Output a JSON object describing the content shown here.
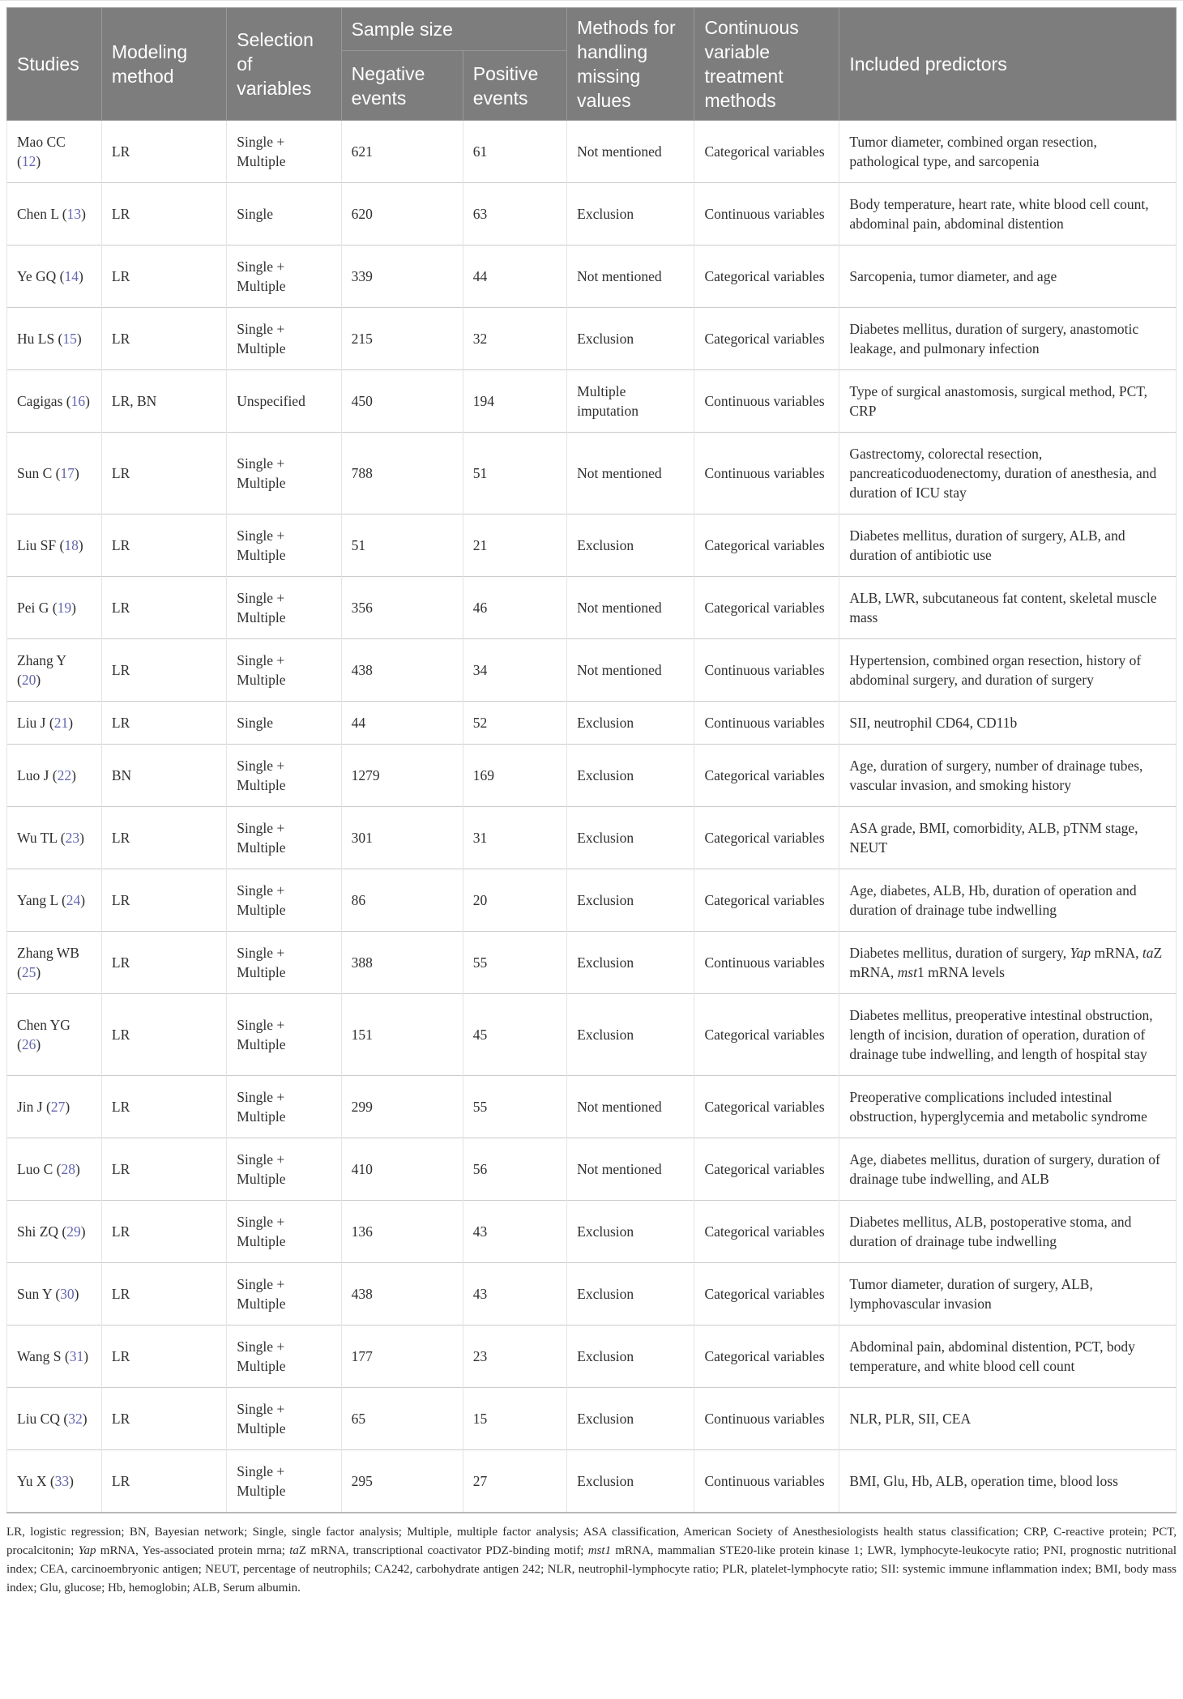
{
  "colors": {
    "header_bg": "#7d7d7d",
    "header_text": "#ffffff",
    "body_text": "#2f2f2f",
    "citation": "#6366b0",
    "row_border": "#cbcbcb",
    "col_border": "#e4e4e4"
  },
  "table": {
    "columns": {
      "studies": "Studies",
      "modeling": "Modeling method",
      "selection": "Selection of variables",
      "sample_size": "Sample size",
      "negative": "Negative events",
      "positive": "Positive events",
      "missing": "Methods for handling missing values",
      "treatment": "Continuous variable treatment methods",
      "predictors": "Included predictors"
    },
    "rows": [
      {
        "study": "Mao CC",
        "ref": "12",
        "modeling": "LR",
        "selection": "Single + Multiple",
        "negative": "621",
        "positive": "61",
        "missing": "Not mentioned",
        "treatment": "Categorical variables",
        "predictors": [
          {
            "text": "Tumor diameter, combined organ resection, pathological type, and sarcopenia"
          }
        ]
      },
      {
        "study": "Chen L",
        "ref": "13",
        "modeling": "LR",
        "selection": "Single",
        "negative": "620",
        "positive": "63",
        "missing": "Exclusion",
        "treatment": "Continuous variables",
        "predictors": [
          {
            "text": "Body temperature, heart rate, white blood cell count, abdominal pain, abdominal distention"
          }
        ]
      },
      {
        "study": "Ye GQ",
        "ref": "14",
        "modeling": "LR",
        "selection": "Single + Multiple",
        "negative": "339",
        "positive": "44",
        "missing": "Not mentioned",
        "treatment": "Categorical variables",
        "predictors": [
          {
            "text": "Sarcopenia, tumor diameter, and age"
          }
        ]
      },
      {
        "study": "Hu LS",
        "ref": "15",
        "modeling": "LR",
        "selection": "Single + Multiple",
        "negative": "215",
        "positive": "32",
        "missing": "Exclusion",
        "treatment": "Categorical variables",
        "predictors": [
          {
            "text": "Diabetes mellitus, duration of surgery, anastomotic leakage, and pulmonary infection"
          }
        ]
      },
      {
        "study": "Cagigas",
        "ref": "16",
        "modeling": "LR, BN",
        "selection": "Unspecified",
        "negative": "450",
        "positive": "194",
        "missing": "Multiple imputation",
        "treatment": "Continuous variables",
        "predictors": [
          {
            "text": "Type of surgical anastomosis, surgical method, PCT, CRP"
          }
        ]
      },
      {
        "study": "Sun C",
        "ref": "17",
        "modeling": "LR",
        "selection": "Single + Multiple",
        "negative": "788",
        "positive": "51",
        "missing": "Not mentioned",
        "treatment": "Continuous variables",
        "predictors": [
          {
            "text": "Gastrectomy, colorectal resection, pancreaticoduodenectomy, duration of anesthesia, and duration of ICU stay"
          }
        ]
      },
      {
        "study": "Liu SF",
        "ref": "18",
        "modeling": "LR",
        "selection": "Single + Multiple",
        "negative": "51",
        "positive": "21",
        "missing": "Exclusion",
        "treatment": "Categorical variables",
        "predictors": [
          {
            "text": "Diabetes mellitus, duration of surgery, ALB, and duration of antibiotic use"
          }
        ]
      },
      {
        "study": "Pei G",
        "ref": "19",
        "modeling": "LR",
        "selection": "Single + Multiple",
        "negative": "356",
        "positive": "46",
        "missing": "Not mentioned",
        "treatment": "Categorical variables",
        "predictors": [
          {
            "text": "ALB, LWR, subcutaneous fat content, skeletal muscle mass"
          }
        ]
      },
      {
        "study": "Zhang Y",
        "ref": "20",
        "modeling": "LR",
        "selection": "Single + Multiple",
        "negative": "438",
        "positive": "34",
        "missing": "Not mentioned",
        "treatment": "Continuous variables",
        "predictors": [
          {
            "text": "Hypertension, combined organ resection, history of abdominal surgery, and duration of surgery"
          }
        ]
      },
      {
        "study": "Liu J",
        "ref": "21",
        "modeling": "LR",
        "selection": "Single",
        "negative": "44",
        "positive": "52",
        "missing": "Exclusion",
        "treatment": "Continuous variables",
        "predictors": [
          {
            "text": "SII, neutrophil CD64, CD11b"
          }
        ]
      },
      {
        "study": "Luo J",
        "ref": "22",
        "modeling": "BN",
        "selection": "Single + Multiple",
        "negative": "1279",
        "positive": "169",
        "missing": "Exclusion",
        "treatment": "Categorical variables",
        "predictors": [
          {
            "text": "Age, duration of surgery, number of drainage tubes, vascular invasion, and smoking history"
          }
        ]
      },
      {
        "study": "Wu TL",
        "ref": "23",
        "modeling": "LR",
        "selection": "Single + Multiple",
        "negative": "301",
        "positive": "31",
        "missing": "Exclusion",
        "treatment": "Categorical variables",
        "predictors": [
          {
            "text": "ASA grade, BMI, comorbidity, ALB, pTNM stage, NEUT"
          }
        ]
      },
      {
        "study": "Yang L",
        "ref": "24",
        "modeling": "LR",
        "selection": "Single + Multiple",
        "negative": "86",
        "positive": "20",
        "missing": "Exclusion",
        "treatment": "Categorical variables",
        "predictors": [
          {
            "text": "Age, diabetes, ALB, Hb, duration of operation and duration of drainage tube indwelling"
          }
        ]
      },
      {
        "study": "Zhang WB",
        "ref": "25",
        "modeling": "LR",
        "selection": "Single + Multiple",
        "negative": "388",
        "positive": "55",
        "missing": "Exclusion",
        "treatment": "Continuous variables",
        "predictors": [
          {
            "text": "Diabetes mellitus, duration of surgery, "
          },
          {
            "text": "Yap",
            "italic": true
          },
          {
            "text": " mRNA, "
          },
          {
            "text": "ta",
            "italic": true
          },
          {
            "text": "Z mRNA, "
          },
          {
            "text": "mst",
            "italic": true
          },
          {
            "text": "1 mRNA levels"
          }
        ]
      },
      {
        "study": "Chen YG",
        "ref": "26",
        "modeling": "LR",
        "selection": "Single + Multiple",
        "negative": "151",
        "positive": "45",
        "missing": "Exclusion",
        "treatment": "Categorical variables",
        "predictors": [
          {
            "text": "Diabetes mellitus, preoperative intestinal obstruction, length of incision, duration of operation, duration of drainage tube indwelling, and length of hospital stay"
          }
        ]
      },
      {
        "study": "Jin J",
        "ref": "27",
        "modeling": "LR",
        "selection": "Single + Multiple",
        "negative": "299",
        "positive": "55",
        "missing": "Not mentioned",
        "treatment": "Categorical variables",
        "predictors": [
          {
            "text": "Preoperative complications included intestinal obstruction, hyperglycemia and metabolic syndrome"
          }
        ]
      },
      {
        "study": "Luo C",
        "ref": "28",
        "modeling": "LR",
        "selection": "Single + Multiple",
        "negative": "410",
        "positive": "56",
        "missing": "Not mentioned",
        "treatment": "Categorical variables",
        "predictors": [
          {
            "text": "Age, diabetes mellitus, duration of surgery, duration of drainage tube indwelling, and ALB"
          }
        ]
      },
      {
        "study": "Shi ZQ",
        "ref": "29",
        "modeling": "LR",
        "selection": "Single + Multiple",
        "negative": "136",
        "positive": "43",
        "missing": "Exclusion",
        "treatment": "Categorical variables",
        "predictors": [
          {
            "text": "Diabetes mellitus, ALB, postoperative stoma, and duration of drainage tube indwelling"
          }
        ]
      },
      {
        "study": "Sun Y",
        "ref": "30",
        "modeling": "LR",
        "selection": "Single + Multiple",
        "negative": "438",
        "positive": "43",
        "missing": "Exclusion",
        "treatment": "Categorical variables",
        "predictors": [
          {
            "text": "Tumor diameter, duration of surgery, ALB, lymphovascular invasion"
          }
        ]
      },
      {
        "study": "Wang S",
        "ref": "31",
        "modeling": "LR",
        "selection": "Single + Multiple",
        "negative": "177",
        "positive": "23",
        "missing": "Exclusion",
        "treatment": "Categorical variables",
        "predictors": [
          {
            "text": "Abdominal pain, abdominal distention, PCT, body temperature, and white blood cell count"
          }
        ]
      },
      {
        "study": "Liu CQ",
        "ref": "32",
        "modeling": "LR",
        "selection": "Single + Multiple",
        "negative": "65",
        "positive": "15",
        "missing": "Exclusion",
        "treatment": "Continuous variables",
        "predictors": [
          {
            "text": "NLR, PLR, SII, CEA"
          }
        ]
      },
      {
        "study": "Yu X",
        "ref": "33",
        "modeling": "LR",
        "selection": "Single + Multiple",
        "negative": "295",
        "positive": "27",
        "missing": "Exclusion",
        "treatment": "Continuous variables",
        "predictors": [
          {
            "text": "BMI, Glu, Hb, ALB, operation time, blood loss"
          }
        ]
      }
    ]
  },
  "footnote": {
    "segments": [
      {
        "text": "LR, logistic regression; BN, Bayesian network; Single, single factor analysis; Multiple, multiple factor analysis; ASA classification, American Society of Anesthesiologists health status classification; CRP, C-reactive protein; PCT, procalcitonin; "
      },
      {
        "text": "Yap",
        "italic": true
      },
      {
        "text": " mRNA, Yes-associated protein mrna; "
      },
      {
        "text": "ta",
        "italic": true
      },
      {
        "text": "Z mRNA, transcriptional coactivator PDZ-binding motif; "
      },
      {
        "text": "mst1",
        "italic": true
      },
      {
        "text": " mRNA, mammalian STE20-like protein kinase 1; LWR, lymphocyte-leukocyte ratio; PNI, prognostic nutritional index; CEA, carcinoembryonic antigen; NEUT, percentage of neutrophils; CA242, carbohydrate antigen 242; NLR, neutrophil-lymphocyte ratio; PLR, platelet-lymphocyte ratio; SII: systemic immune inflammation index; BMI, body mass index; Glu, glucose; Hb, hemoglobin; ALB, Serum albumin."
      }
    ]
  }
}
